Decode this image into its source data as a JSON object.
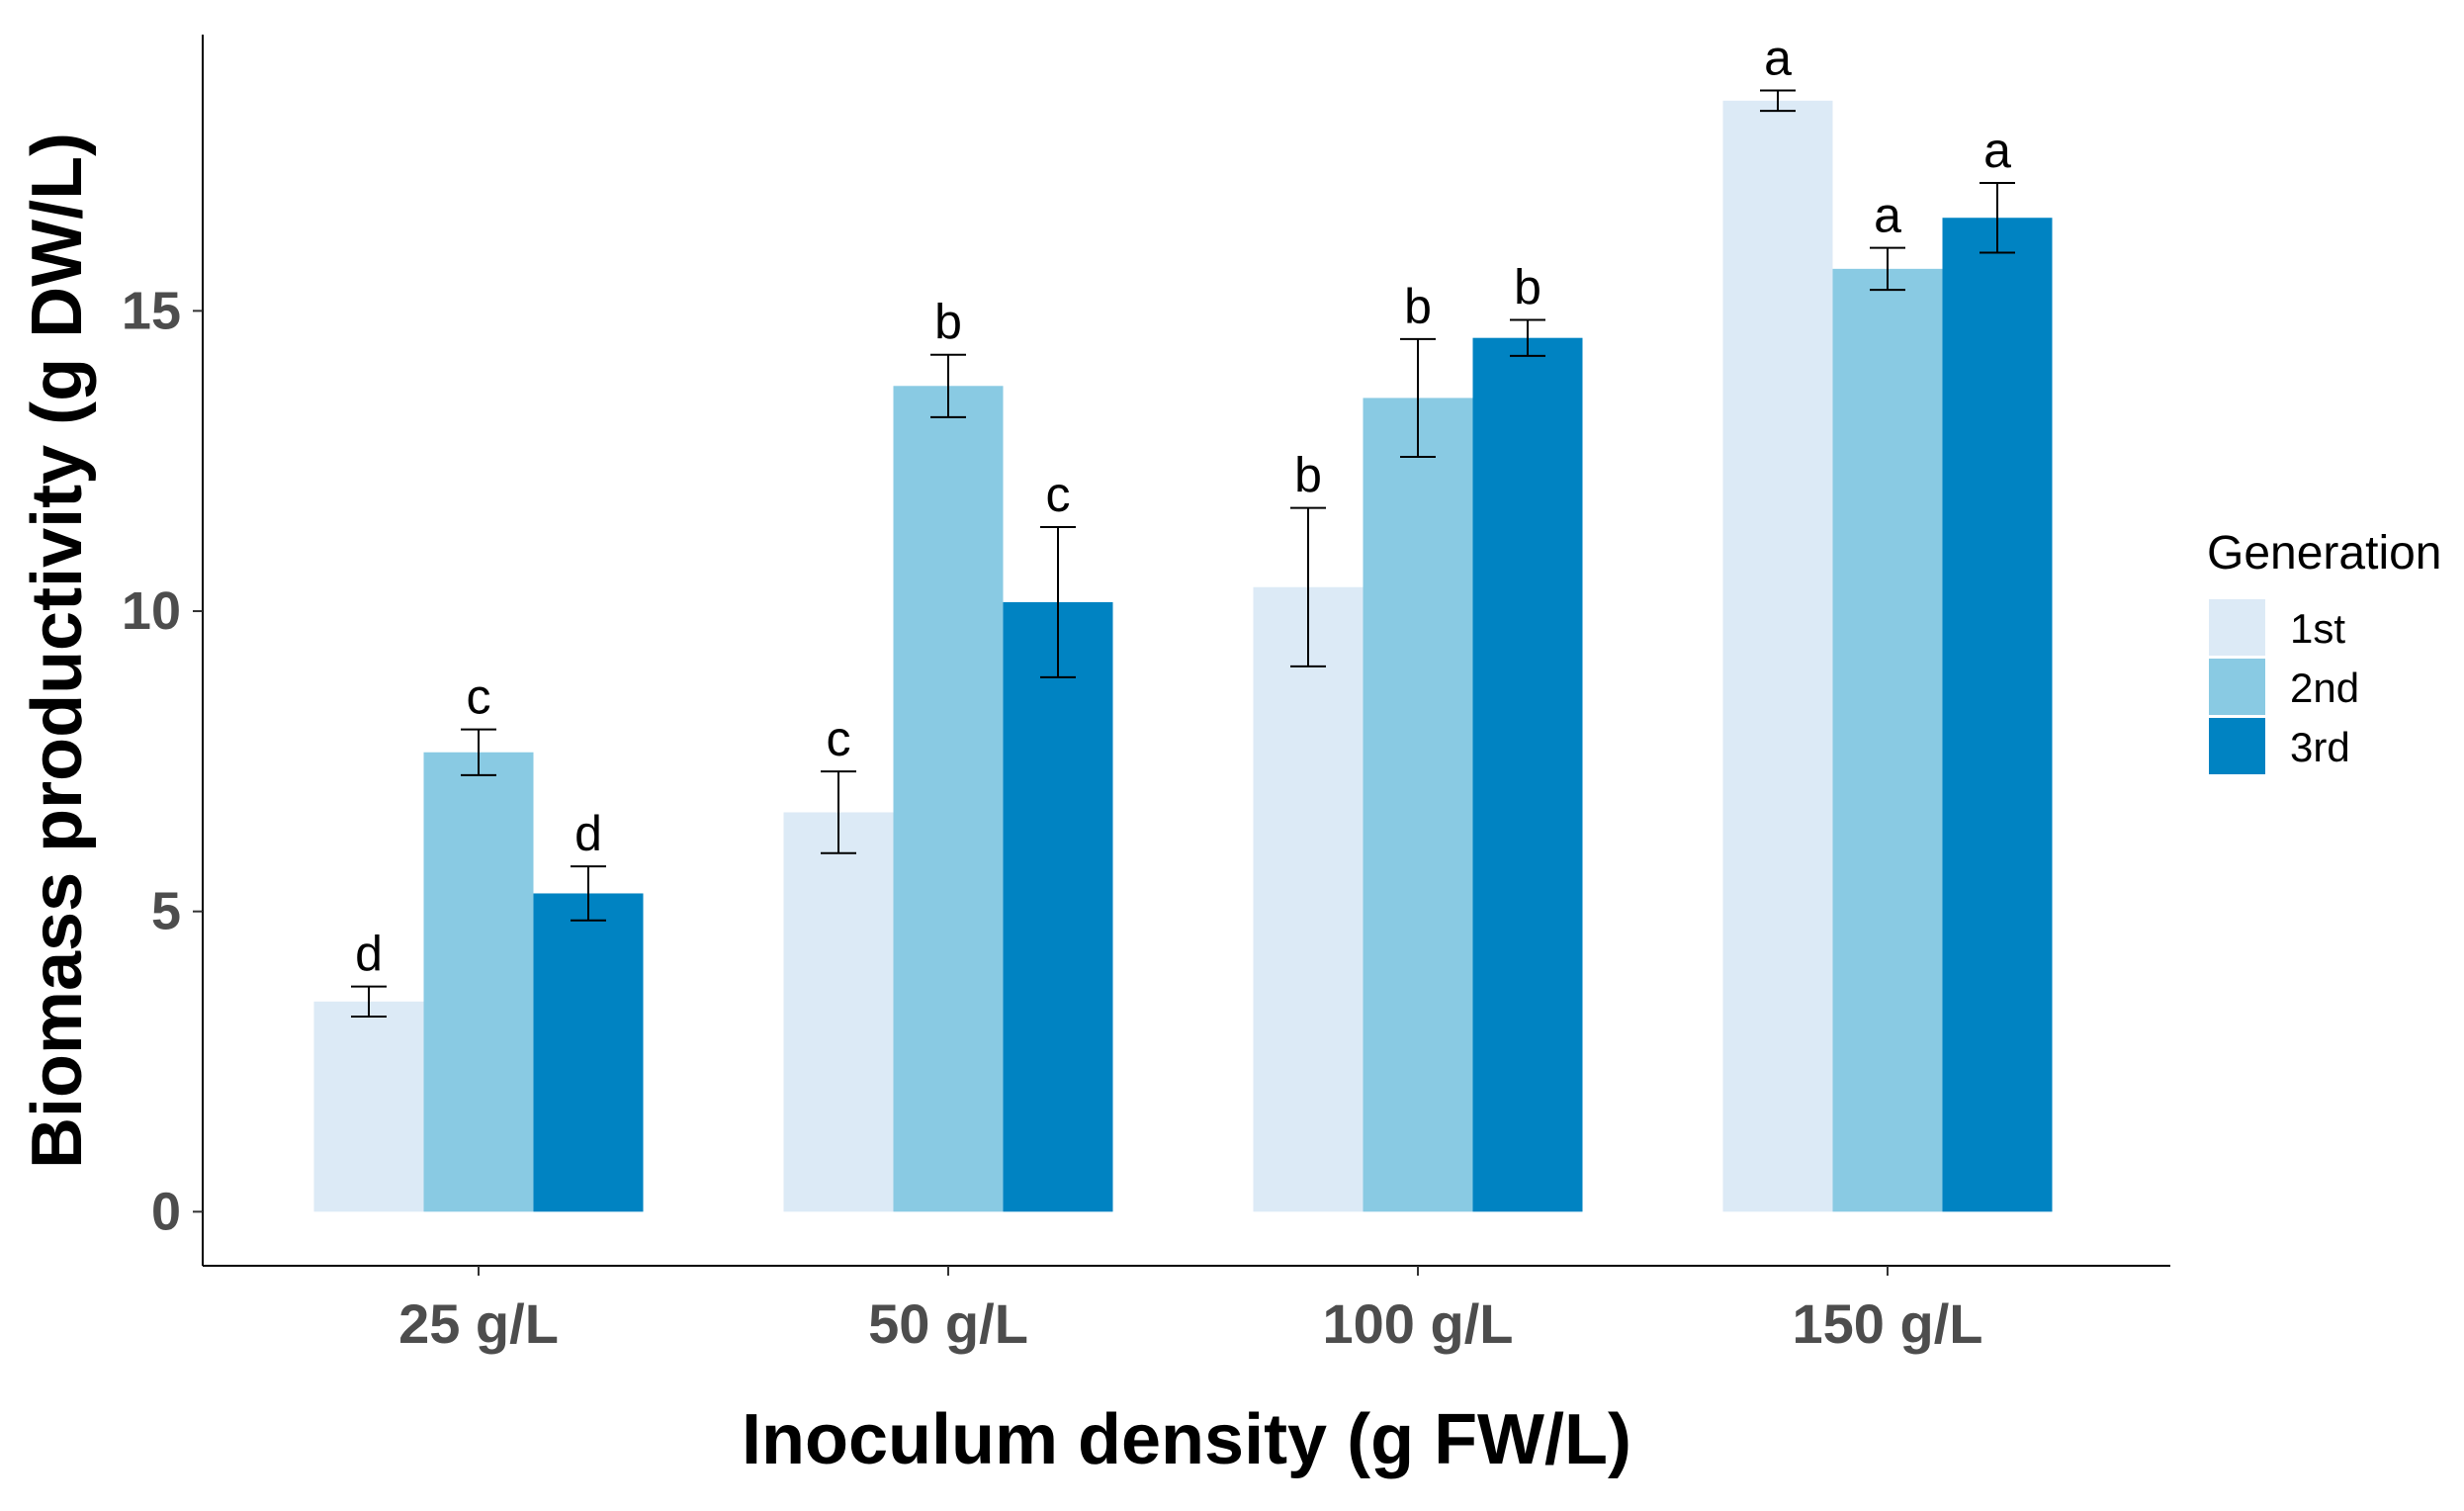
{
  "chart_data": {
    "type": "bar",
    "xlabel": "Inoculum density (g FW/L)",
    "ylabel": "Biomass productivity (g DW/L)",
    "categories": [
      "25 g/L",
      "50 g/L",
      "100 g/L",
      "150 g/L"
    ],
    "ylim": [
      -0.9,
      19.6
    ],
    "yticks": [
      0,
      5,
      10,
      15
    ],
    "grid": false,
    "legend": {
      "title": "Generation",
      "position": "right"
    },
    "series": [
      {
        "name": "1st",
        "color": "#DCEAF6",
        "values": [
          3.5,
          6.65,
          10.4,
          18.5
        ],
        "errors": [
          0.25,
          0.68,
          1.32,
          0.17
        ],
        "letters": [
          "d",
          "c",
          "b",
          "a"
        ]
      },
      {
        "name": "2nd",
        "color": "#89CAE3",
        "values": [
          7.65,
          13.75,
          13.55,
          15.7
        ],
        "errors": [
          0.38,
          0.52,
          0.98,
          0.35
        ],
        "letters": [
          "c",
          "b",
          "b",
          "a"
        ]
      },
      {
        "name": "3rd",
        "color": "#0083C2",
        "values": [
          5.3,
          10.15,
          14.55,
          16.55
        ],
        "errors": [
          0.45,
          1.25,
          0.3,
          0.58
        ],
        "letters": [
          "d",
          "c",
          "b",
          "a"
        ]
      }
    ]
  }
}
